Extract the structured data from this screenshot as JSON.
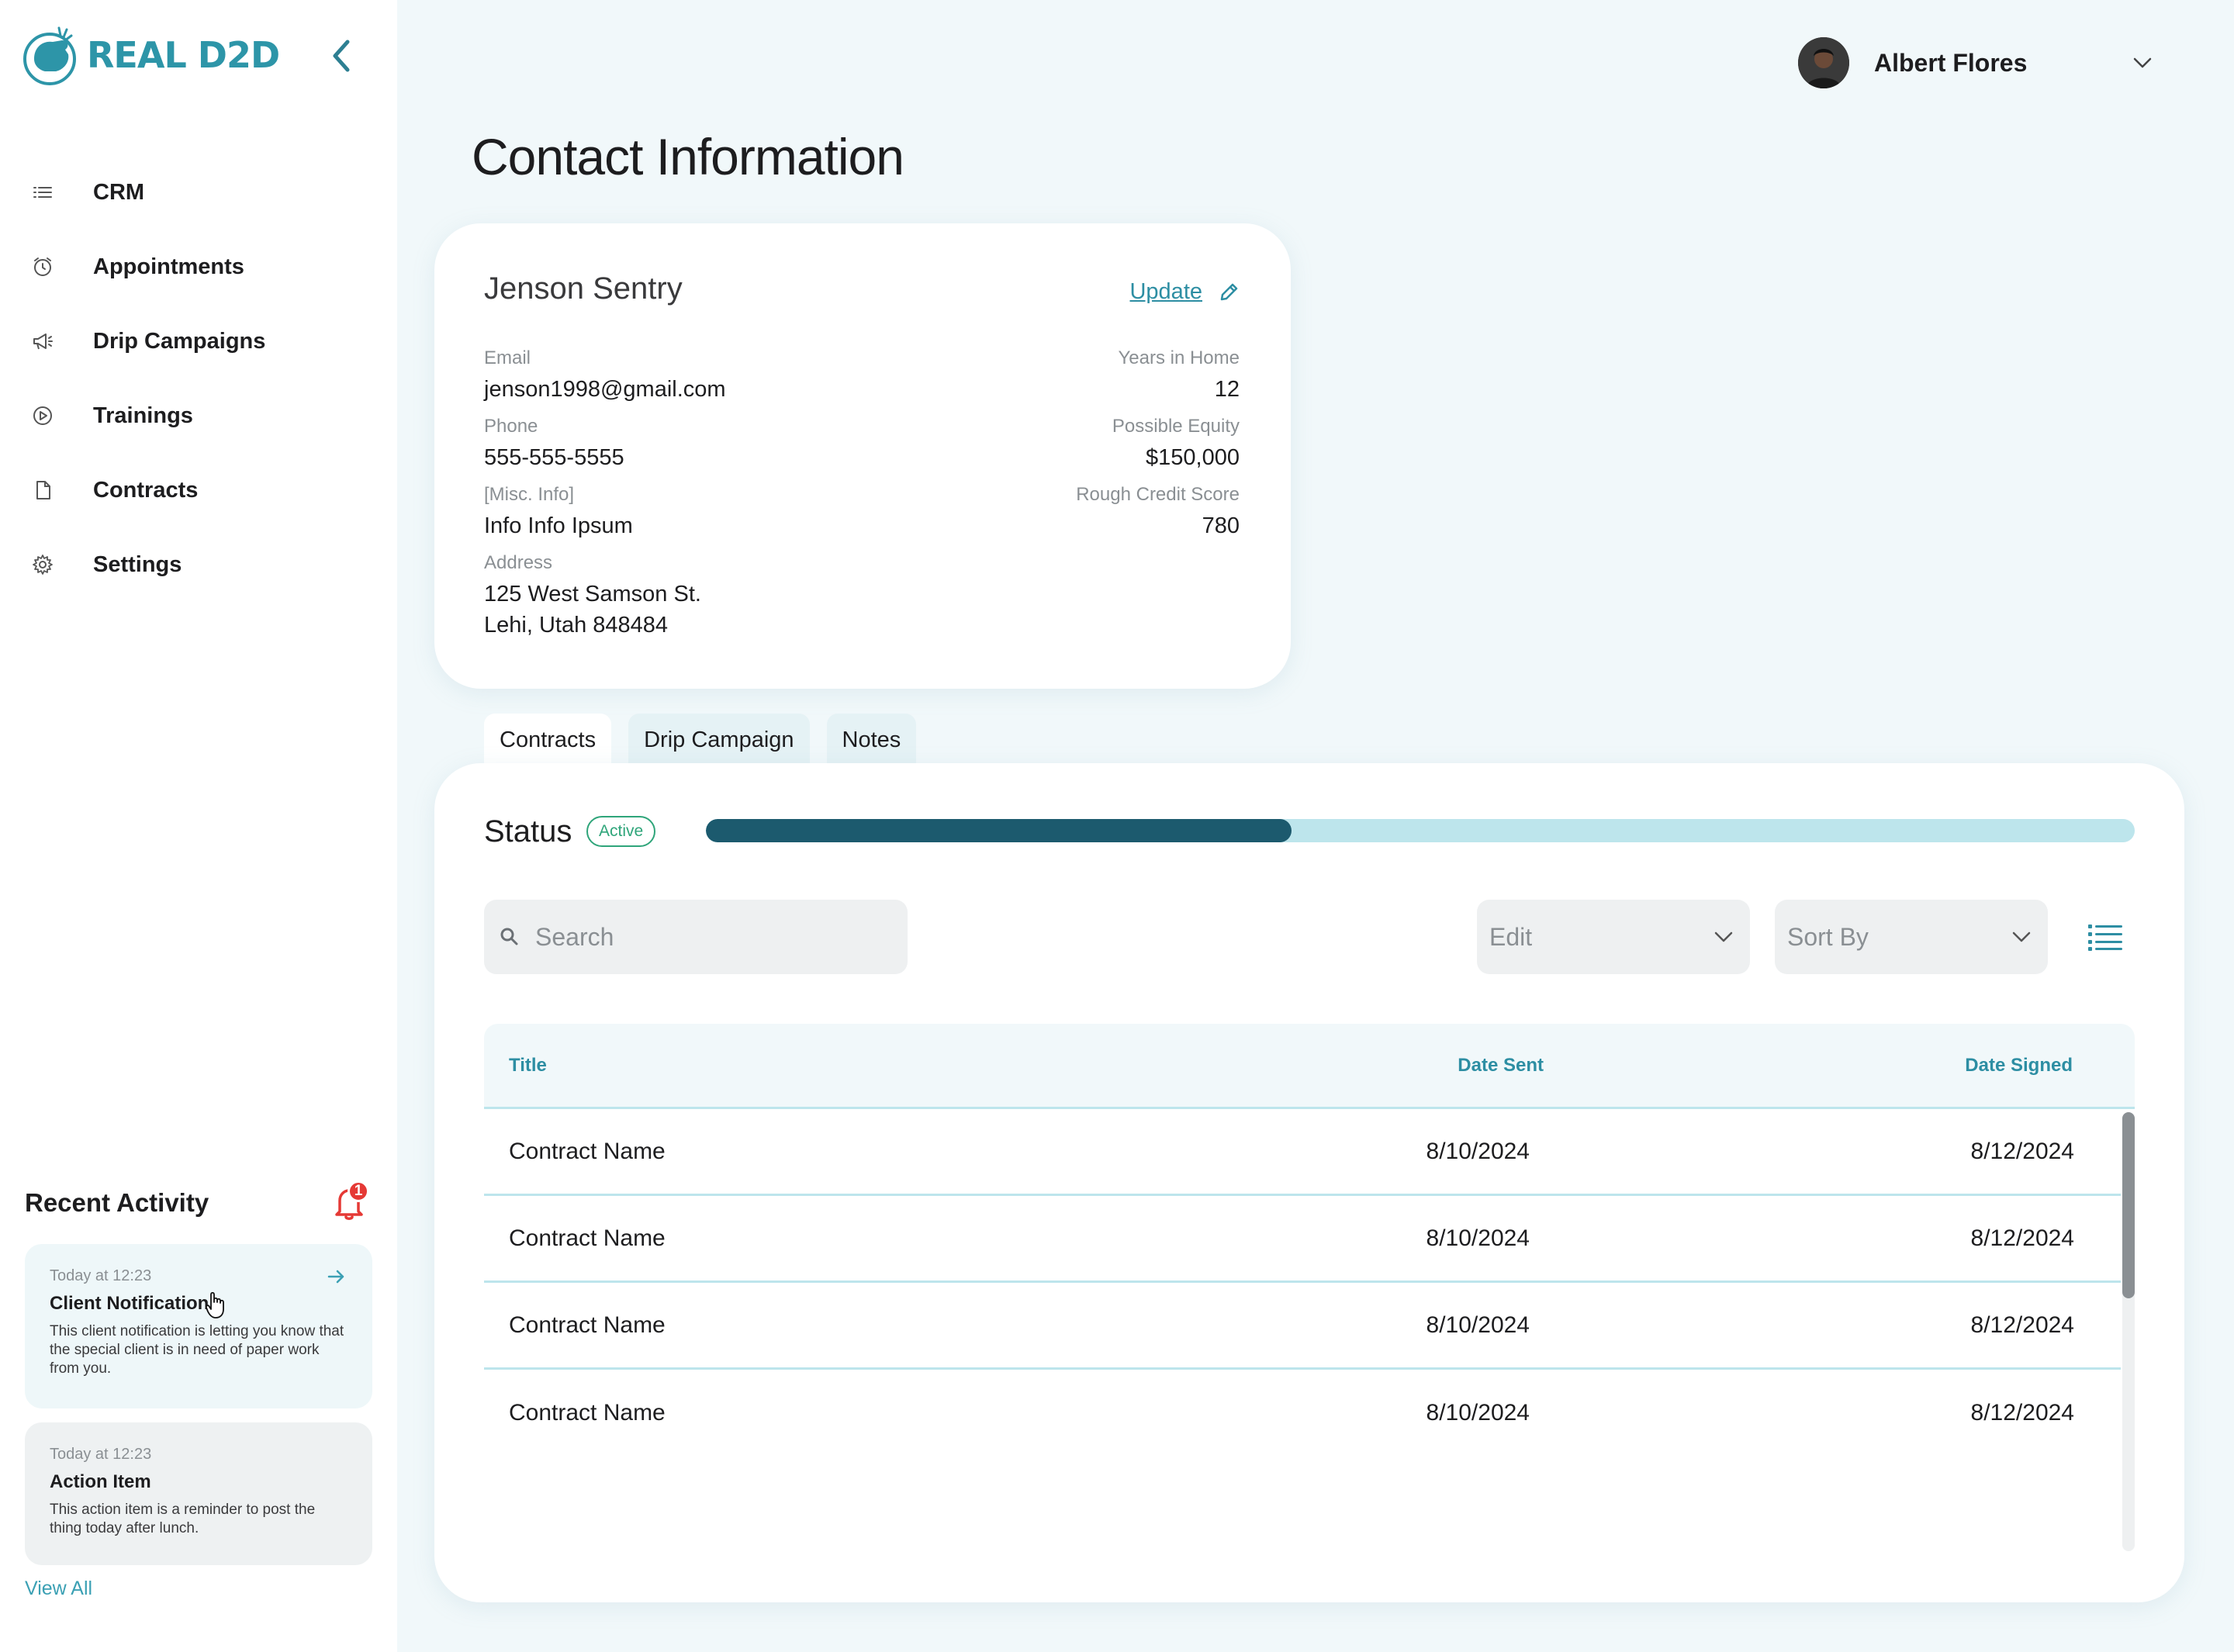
{
  "brand": {
    "name": "REAL D2D",
    "accent": "#2d95a8"
  },
  "sidebar": {
    "items": [
      {
        "label": "CRM",
        "icon": "list-icon"
      },
      {
        "label": "Appointments",
        "icon": "alarm-clock-icon"
      },
      {
        "label": "Drip Campaigns",
        "icon": "megaphone-icon"
      },
      {
        "label": "Trainings",
        "icon": "play-circle-icon"
      },
      {
        "label": "Contracts",
        "icon": "document-icon"
      },
      {
        "label": "Settings",
        "icon": "gear-icon"
      }
    ]
  },
  "recent_activity": {
    "title": "Recent Activity",
    "badge_count": "1",
    "items": [
      {
        "time": "Today at 12:23",
        "title": "Client Notification",
        "body": "This client notification is letting you know that the special client is in need of paper work from you."
      },
      {
        "time": "Today at 12:23",
        "title": "Action Item",
        "body": "This action item is a reminder to post the thing today after lunch."
      }
    ],
    "view_all": "View All"
  },
  "user": {
    "name": "Albert Flores"
  },
  "page": {
    "title": "Contact Information"
  },
  "contact": {
    "name": "Jenson Sentry",
    "update_label": "Update",
    "email_label": "Email",
    "email": "jenson1998@gmail.com",
    "phone_label": "Phone",
    "phone": "555-555-5555",
    "misc_label": "[Misc. Info]",
    "misc": "Info Info Ipsum",
    "address_label": "Address",
    "address_line1": "125 West Samson St.",
    "address_line2": "Lehi, Utah 848484",
    "years_label": "Years in Home",
    "years": "12",
    "equity_label": "Possible Equity",
    "equity": "$150,000",
    "credit_label": "Rough Credit Score",
    "credit": "780"
  },
  "tabs": [
    {
      "label": "Contracts",
      "active": true
    },
    {
      "label": "Drip Campaign",
      "active": false
    },
    {
      "label": "Notes",
      "active": false
    }
  ],
  "status": {
    "label": "Status",
    "badge": "Active",
    "progress_fraction": 0.41,
    "colors": {
      "fill": "#1c5a6e",
      "track": "#bde5ec",
      "badge": "#2fa57a"
    }
  },
  "toolbar": {
    "search_placeholder": "Search",
    "edit_label": "Edit",
    "sort_label": "Sort By"
  },
  "table": {
    "columns": [
      "Title",
      "Date Sent",
      "Date Signed"
    ],
    "rows": [
      {
        "title": "Contract Name",
        "date_sent": "8/10/2024",
        "date_signed": "8/12/2024"
      },
      {
        "title": "Contract Name",
        "date_sent": "8/10/2024",
        "date_signed": "8/12/2024"
      },
      {
        "title": "Contract Name",
        "date_sent": "8/10/2024",
        "date_signed": "8/12/2024"
      },
      {
        "title": "Contract Name",
        "date_sent": "8/10/2024",
        "date_signed": "8/12/2024"
      }
    ]
  }
}
